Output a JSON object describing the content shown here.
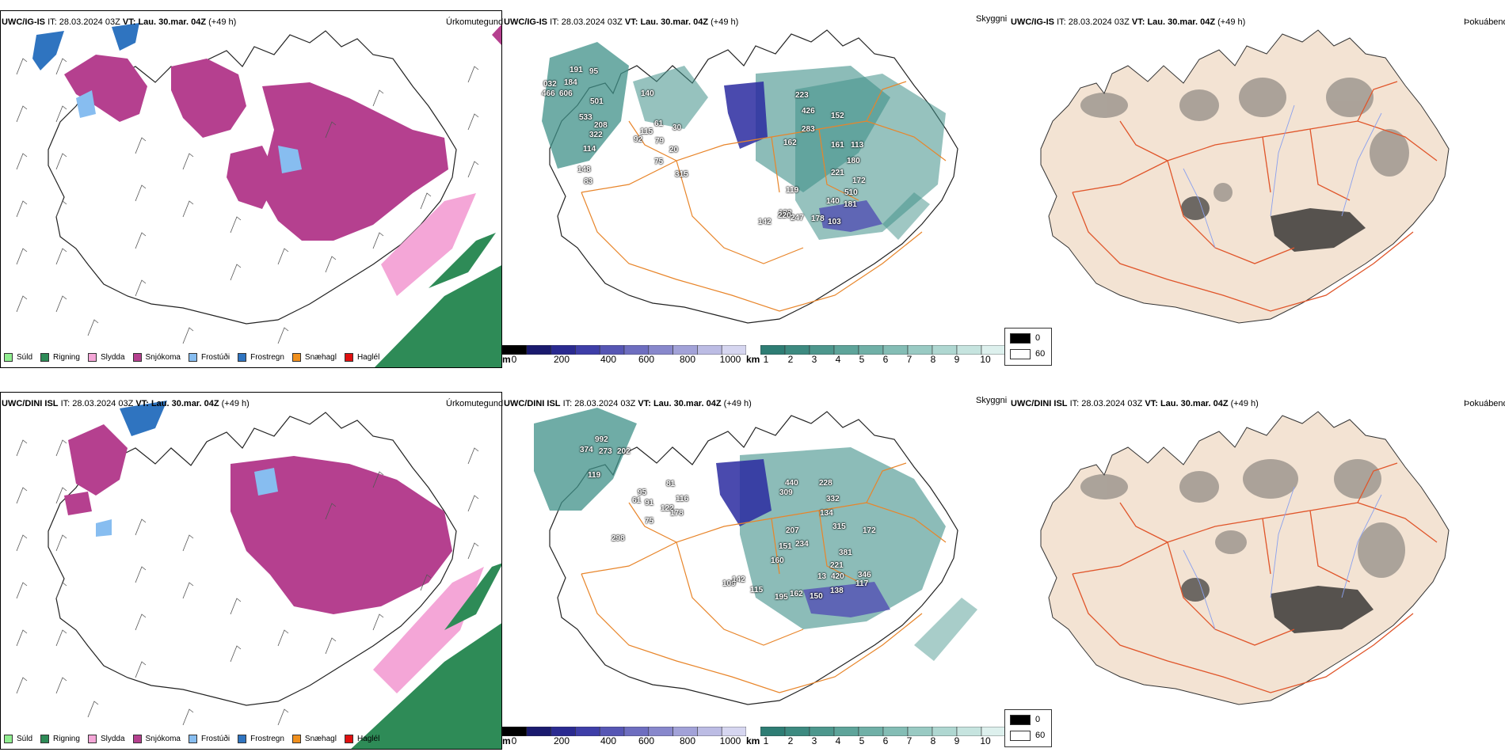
{
  "rows": [
    {
      "model": "UWC/IG-IS",
      "it_label": "IT:",
      "it_value": "28.03.2024 03Z",
      "vt_label": "VT:",
      "vt_value": "Lau. 30.mar. 04Z",
      "lead": "(+49 h)",
      "cloud_labels": [
        "191",
        "95",
        "032",
        "184",
        "466",
        "606",
        "140",
        "501",
        "533",
        "208",
        "322",
        "114",
        "148",
        "92",
        "83",
        "115",
        "79",
        "20",
        "75",
        "315",
        "61",
        "30",
        "223",
        "426",
        "283",
        "162",
        "152",
        "161",
        "113",
        "180",
        "221",
        "172",
        "510",
        "181",
        "119",
        "122",
        "142",
        "220",
        "247",
        "178",
        "103",
        "140"
      ]
    },
    {
      "model": "UWC/DINI ISL",
      "it_label": "IT:",
      "it_value": "28.03.2024 03Z",
      "vt_label": "VT:",
      "vt_value": "Lau. 30.mar. 04Z",
      "lead": "(+49 h)",
      "cloud_labels": [
        "992",
        "374",
        "273",
        "202",
        "119",
        "298",
        "95",
        "61",
        "116",
        "81",
        "91",
        "122",
        "178",
        "75",
        "440",
        "309",
        "228",
        "332",
        "134",
        "207",
        "315",
        "381",
        "151",
        "221",
        "172",
        "234",
        "420",
        "346",
        "160",
        "115",
        "195",
        "162",
        "150",
        "13",
        "138",
        "117",
        "109",
        "142"
      ]
    }
  ],
  "panel_titles": {
    "precip": "Úrkomutegund",
    "cloud": "Skyggni",
    "fog": "Þokuábendi"
  },
  "precip_legend": [
    {
      "label": "Súld",
      "color": "#90ee90"
    },
    {
      "label": "Rigning",
      "color": "#2e8b57"
    },
    {
      "label": "Slydda",
      "color": "#f4a6d7"
    },
    {
      "label": "Snjókoma",
      "color": "#b5408f"
    },
    {
      "label": "Frostúði",
      "color": "#87bdf0"
    },
    {
      "label": "Frostregn",
      "color": "#2f74c0"
    },
    {
      "label": "Snæhagl",
      "color": "#f0901e"
    },
    {
      "label": "Haglél",
      "color": "#e01010"
    }
  ],
  "cloud_base_bar": {
    "unit": "m",
    "ticks": [
      "0",
      "200",
      "400",
      "600",
      "800",
      "1000"
    ],
    "colors": [
      "#000000",
      "#1a1a6e",
      "#2a2a90",
      "#3e3ea8",
      "#5656b4",
      "#6e6ec0",
      "#8888cc",
      "#a2a2d8",
      "#bcbce4",
      "#d6d6f0"
    ]
  },
  "visibility_bar": {
    "unit": "km",
    "ticks": [
      "1",
      "2",
      "3",
      "4",
      "5",
      "6",
      "7",
      "8",
      "9",
      "10"
    ],
    "colors": [
      "#2e7d74",
      "#3d8a80",
      "#4d978d",
      "#5ea49a",
      "#70b0a7",
      "#84bdb5",
      "#99cac3",
      "#afd7d1",
      "#c6e4df",
      "#ddf0ed"
    ]
  },
  "fog_legend": {
    "high": "0",
    "low": "60"
  },
  "colors": {
    "snow": "#b5408f",
    "rain": "#2e8b57",
    "sleet": "#f4a6d7",
    "freezing_drizzle": "#87bdf0",
    "freezing_rain": "#2f74c0",
    "roads": "#e8852a",
    "fog_land": "#f3e3d3",
    "fog_roads": "#e0552a",
    "rivers": "#8aa0ee",
    "cloud_teal": "#3f9088",
    "cloud_navy": "#2a2aa0"
  }
}
